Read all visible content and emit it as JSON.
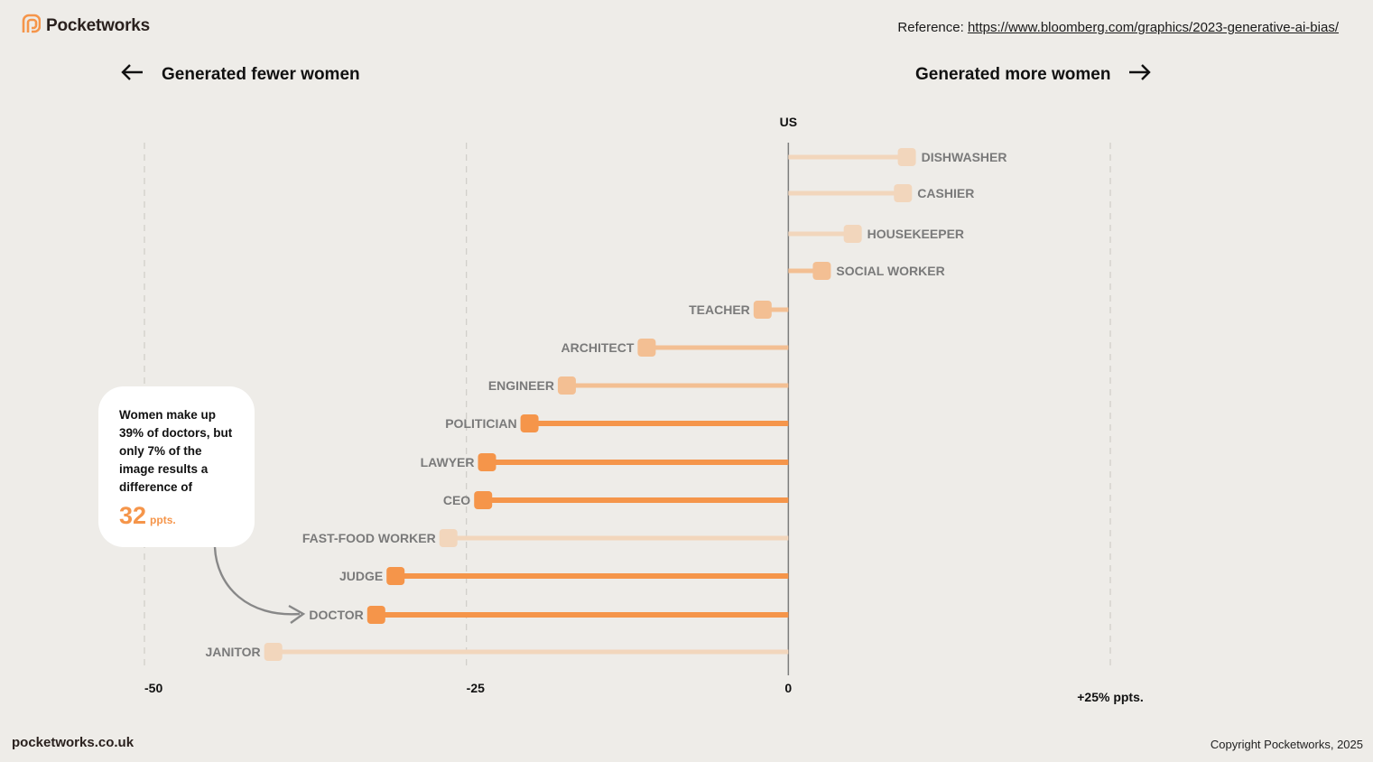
{
  "brand": {
    "name": "Pocketworks",
    "logo_icon": "pocketworks-logo-icon",
    "color": "#F5954A"
  },
  "reference": {
    "label": "Reference:",
    "url_text": "https://www.bloomberg.com/graphics/2023-generative-ai-bias/"
  },
  "directions": {
    "left": {
      "label": "Generated fewer women",
      "icon": "arrow-left-icon"
    },
    "right": {
      "label": "Generated more women",
      "icon": "arrow-right-icon"
    }
  },
  "callout": {
    "text": "Women make up 39% of doctors, but only 7% of the image results a difference of",
    "number": "32",
    "unit": "ppts.",
    "points_to": "DOCTOR"
  },
  "footer": {
    "website": "pocketworks.co.uk",
    "copyright": "Copyright Pocketworks, 2025"
  },
  "chart_data": {
    "type": "bar",
    "orientation": "horizontal-lollipop",
    "title": "",
    "zero_label": "US",
    "xlabel": "",
    "ylabel": "",
    "xlim": [
      -50,
      25
    ],
    "x_ticks": [
      {
        "value": -50,
        "label": "-50"
      },
      {
        "value": -25,
        "label": "-25"
      },
      {
        "value": 0,
        "label": "0"
      },
      {
        "value": 25,
        "label": "+25% ppts."
      }
    ],
    "grid": "dashed vertical at -50, -25, +25",
    "colors": {
      "strong": "#F5954A",
      "medium": "#F3BF93",
      "light": "#F2D6BC",
      "label": "#7a7a7a",
      "axis": "#7d7d7d"
    },
    "categories": [
      "DISHWASHER",
      "CASHIER",
      "HOUSEKEEPER",
      "SOCIAL WORKER",
      "TEACHER",
      "ARCHITECT",
      "ENGINEER",
      "POLITICIAN",
      "LAWYER",
      "CEO",
      "FAST-FOOD WORKER",
      "JUDGE",
      "DOCTOR",
      "JANITOR"
    ],
    "values": [
      9.2,
      8.9,
      5.0,
      2.6,
      -2.0,
      -11.0,
      -17.2,
      -20.1,
      -23.4,
      -23.7,
      -26.4,
      -30.5,
      -32.0,
      -40.0
    ],
    "intensity": [
      "light",
      "light",
      "light",
      "medium",
      "medium",
      "medium",
      "medium",
      "strong",
      "strong",
      "strong",
      "light",
      "strong",
      "strong",
      "light"
    ]
  }
}
